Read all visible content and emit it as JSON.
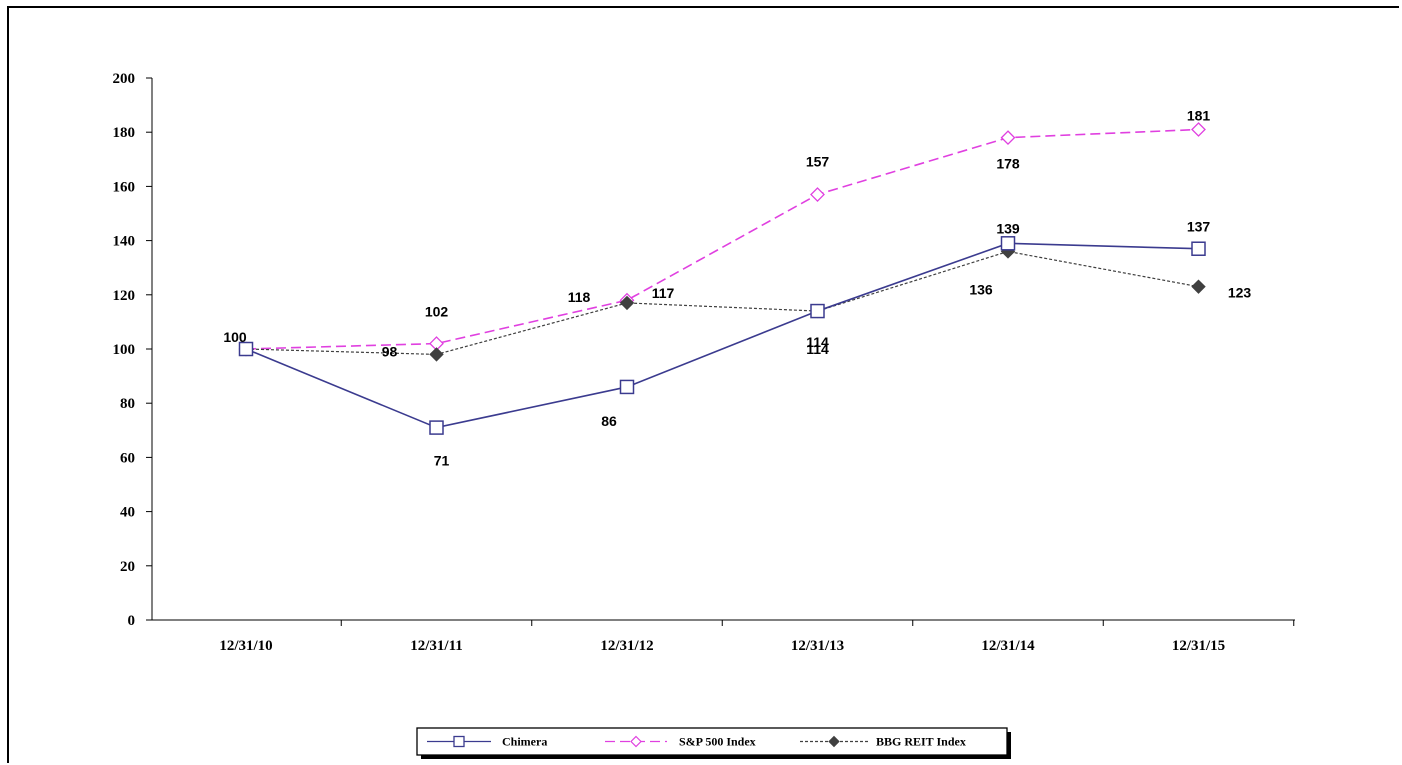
{
  "chart_data": {
    "type": "line",
    "title": "",
    "xlabel": "",
    "ylabel": "",
    "categories": [
      "12/31/10",
      "12/31/11",
      "12/31/12",
      "12/31/13",
      "12/31/14",
      "12/31/15"
    ],
    "ylim": [
      0,
      200
    ],
    "yticks": [
      0,
      20,
      40,
      60,
      80,
      100,
      120,
      140,
      160,
      180,
      200
    ],
    "grid": false,
    "legend_position": "bottom",
    "series": [
      {
        "name": "Chimera",
        "values": [
          100,
          71,
          86,
          114,
          139,
          137
        ],
        "labels": [
          "100",
          "71",
          "86",
          "114",
          "139",
          "137"
        ],
        "color": "#3b3b8f",
        "marker": "open-square",
        "dash": "solid"
      },
      {
        "name": "S&P 500 Index",
        "values": [
          100,
          102,
          118,
          157,
          178,
          181
        ],
        "labels": [
          "",
          "102",
          "118",
          "157",
          "178",
          "181"
        ],
        "color": "#e040e0",
        "marker": "open-diamond",
        "dash": "dashed"
      },
      {
        "name": "BBG REIT Index",
        "values": [
          100,
          98,
          117,
          114,
          136,
          123
        ],
        "labels": [
          "",
          "98",
          "117",
          "114",
          "136",
          "123"
        ],
        "color": "#404040",
        "marker": "filled-diamond",
        "dash": "dotted"
      }
    ]
  }
}
